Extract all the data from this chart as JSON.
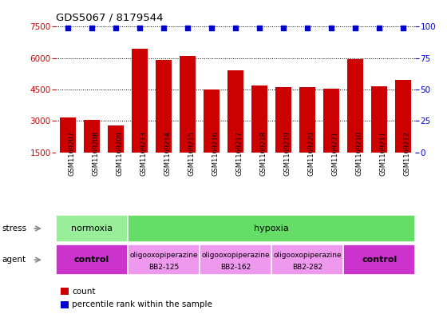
{
  "title": "GDS5067 / 8179544",
  "samples": [
    "GSM1169207",
    "GSM1169208",
    "GSM1169209",
    "GSM1169213",
    "GSM1169214",
    "GSM1169215",
    "GSM1169216",
    "GSM1169217",
    "GSM1169218",
    "GSM1169219",
    "GSM1169220",
    "GSM1169221",
    "GSM1169210",
    "GSM1169211",
    "GSM1169212"
  ],
  "counts": [
    3150,
    3050,
    2800,
    6450,
    5900,
    6100,
    4500,
    5400,
    4700,
    4600,
    4600,
    4550,
    5950,
    4650,
    4950
  ],
  "percentiles": [
    99,
    99,
    99,
    99,
    99,
    99,
    99,
    99,
    99,
    99,
    99,
    99,
    99,
    99,
    99
  ],
  "bar_color": "#cc0000",
  "dot_color": "#0000cc",
  "ylim_left": [
    1500,
    7500
  ],
  "ylim_right": [
    0,
    100
  ],
  "yticks_left": [
    1500,
    3000,
    4500,
    6000,
    7500
  ],
  "yticks_right": [
    0,
    25,
    50,
    75,
    100
  ],
  "stress_groups": [
    {
      "label": "normoxia",
      "start": 0,
      "end": 3,
      "color": "#99ee99"
    },
    {
      "label": "hypoxia",
      "start": 3,
      "end": 15,
      "color": "#66dd66"
    }
  ],
  "agent_groups": [
    {
      "label": "control",
      "start": 0,
      "end": 3,
      "color": "#cc33cc",
      "bold": true
    },
    {
      "label": "oligooxopiperazine\nBB2-125",
      "start": 3,
      "end": 6,
      "color": "#ee99ee",
      "bold": false
    },
    {
      "label": "oligooxopiperazine\nBB2-162",
      "start": 6,
      "end": 9,
      "color": "#ee99ee",
      "bold": false
    },
    {
      "label": "oligooxopiperazine\nBB2-282",
      "start": 9,
      "end": 12,
      "color": "#ee99ee",
      "bold": false
    },
    {
      "label": "control",
      "start": 12,
      "end": 15,
      "color": "#cc33cc",
      "bold": true
    }
  ],
  "stress_label": "stress",
  "agent_label": "agent",
  "legend_count_label": "count",
  "legend_pct_label": "percentile rank within the sample",
  "background_color": "#ffffff",
  "sample_bg_color": "#cccccc",
  "grid_color": "#000000",
  "axis_color_left": "#cc0000",
  "axis_color_right": "#0000cc"
}
